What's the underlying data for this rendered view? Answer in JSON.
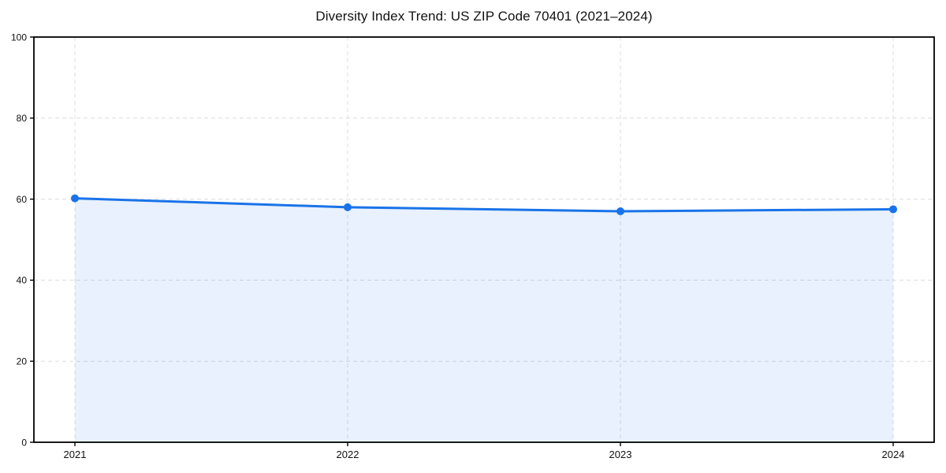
{
  "chart_data": {
    "type": "line",
    "title": "Diversity Index Trend: US ZIP Code 70401 (2021–2024)",
    "categories": [
      "2021",
      "2022",
      "2023",
      "2024"
    ],
    "series": [
      {
        "name": "Diversity Index",
        "values": [
          60.2,
          58.0,
          57.0,
          57.5
        ]
      }
    ],
    "xlabel": "",
    "ylabel": "",
    "ylim": [
      0,
      100
    ],
    "yticks": [
      0,
      20,
      40,
      60,
      80,
      100
    ],
    "grid": true,
    "grid_style": "dashed",
    "legend_position": "none",
    "area_fill": true,
    "marker": "circle",
    "colors": {
      "line": "#1a73e8",
      "marker": "#1a73e8",
      "area_fill": "rgba(26,115,232,0.10)",
      "grid": "#dcdcdc",
      "axis": "#000000",
      "tick_label": "#111111",
      "background": "#ffffff"
    }
  }
}
